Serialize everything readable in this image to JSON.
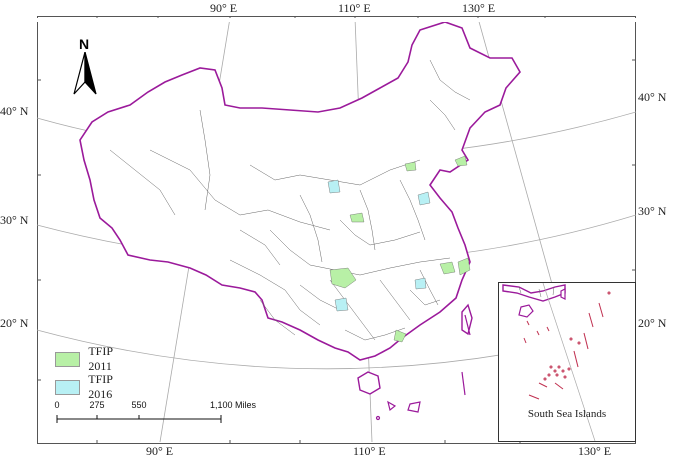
{
  "map": {
    "labels": {
      "lon_top": [
        "90° E",
        "110° E",
        "130° E"
      ],
      "lon_bottom": [
        "90° E",
        "110° E",
        "130° E"
      ],
      "lat_left": [
        "40° N",
        "30° N",
        "20° N"
      ],
      "lat_right": [
        "40° N",
        "30° N",
        "20° N"
      ]
    },
    "north_arrow": {
      "label": "N",
      "icon": "north-arrow-icon"
    },
    "legend": [
      {
        "label": "TFIP 2011",
        "color": "#b8f0a6"
      },
      {
        "label": "TFIP 2016",
        "color": "#b8f0f4"
      }
    ],
    "scale_bar": {
      "ticks": [
        "0",
        "275",
        "550",
        "1,100 Miles"
      ]
    },
    "inset": {
      "title": "South Sea Islands"
    },
    "colors": {
      "coastline": "#9b1a9b",
      "boundary": "#555555",
      "graticule": "#aaaaaa"
    }
  }
}
